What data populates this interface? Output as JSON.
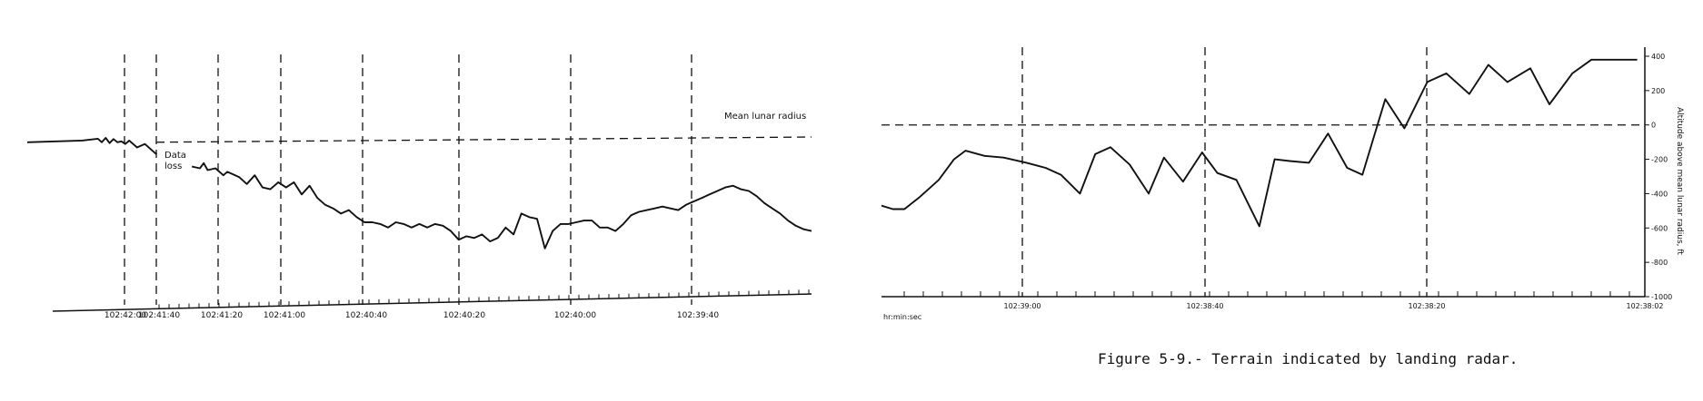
{
  "caption": "Figure 5-9.- Terrain indicated by landing radar.",
  "ink_color": "#111111",
  "chart_data": [
    {
      "type": "line",
      "panel": "left",
      "title": "",
      "xlabel": "",
      "ylabel": "",
      "x_ticks": [
        "102:42:00",
        "102:41:40",
        "102:41:20",
        "102:41:00",
        "102:40:40",
        "102:40:20",
        "102:40:00",
        "102:39:40"
      ],
      "xlim": [
        0,
        100
      ],
      "ylim": [
        -10,
        100
      ],
      "reference_line": {
        "label": "Mean lunar radius",
        "y_start": 85,
        "y_end": 88
      },
      "annotations": [
        "Data",
        "loss"
      ],
      "series": [
        {
          "segment": "before-data-loss",
          "x": [
            0,
            7,
            9,
            9.5,
            10,
            10.5,
            11,
            11.5,
            12,
            12.5,
            13,
            14,
            15,
            16,
            16.5
          ],
          "y": [
            85,
            86,
            87,
            85,
            87.5,
            84.5,
            86.8,
            85,
            85.5,
            84,
            86,
            82,
            84,
            80,
            78
          ]
        },
        {
          "segment": "after-data-loss",
          "x": [
            21,
            22,
            22.5,
            23,
            24,
            25,
            25.5,
            26,
            27,
            28,
            29,
            30,
            31,
            32,
            33,
            34,
            35,
            36,
            37,
            38,
            39,
            40,
            41,
            42,
            43,
            44,
            45,
            46,
            47,
            48,
            49,
            50,
            51,
            52,
            53,
            54,
            55,
            56,
            57,
            58,
            59,
            60,
            61,
            62,
            63,
            64,
            65,
            66,
            67,
            68,
            69,
            70,
            71,
            72,
            73,
            74,
            75,
            76,
            77,
            78,
            79,
            80,
            81,
            82,
            83,
            84,
            85,
            86,
            87,
            88,
            89,
            90,
            91,
            92,
            93,
            94,
            95,
            96,
            97,
            98,
            99,
            100
          ],
          "y": [
            71,
            70,
            73,
            69,
            70,
            66,
            68,
            67,
            65,
            61,
            66,
            59,
            58,
            62,
            59,
            62,
            55,
            60,
            53,
            49,
            47,
            44,
            46,
            42,
            39,
            39,
            38,
            36,
            39,
            38,
            36,
            38,
            36,
            38,
            37,
            34,
            29,
            31,
            30,
            32,
            28,
            30,
            36,
            32,
            44,
            42,
            41,
            24,
            34,
            38,
            38,
            39,
            40,
            40,
            36,
            36,
            34,
            38,
            43,
            45,
            46,
            47,
            48,
            47,
            46,
            49,
            51,
            53,
            55,
            57,
            59,
            60,
            58,
            57,
            54,
            50,
            47,
            44,
            40,
            37,
            35,
            34
          ]
        }
      ]
    },
    {
      "type": "line",
      "panel": "right",
      "title": "",
      "xlabel": "hr:min:sec",
      "ylabel": "Altitude above mean lunar radius, ft",
      "x_ticks": [
        "102:39:00",
        "102:38:40",
        "102:38:20",
        "102:38:02"
      ],
      "y_ticks": [
        400,
        200,
        0,
        -200,
        -400,
        -600,
        -800,
        -1000
      ],
      "xlim": [
        0,
        100
      ],
      "ylim": [
        -1000,
        400
      ],
      "reference_line": {
        "label": "",
        "y": 0
      },
      "series": [
        {
          "name": "",
          "x": [
            0,
            1.5,
            3,
            5,
            7.5,
            9.5,
            11,
            13.5,
            16,
            19,
            21.5,
            23.5,
            26,
            28,
            30,
            32.5,
            35,
            37,
            39.5,
            42,
            44,
            46.5,
            49.5,
            51.5,
            53.5,
            56,
            58.5,
            61,
            63,
            66,
            68.5,
            71.5,
            74,
            77,
            79.5,
            82,
            85,
            87.5,
            90.5,
            93,
            96,
            99
          ],
          "y": [
            -470,
            -490,
            -490,
            -420,
            -320,
            -200,
            -150,
            -180,
            -190,
            -220,
            -250,
            -290,
            -400,
            -170,
            -130,
            -230,
            -400,
            -190,
            -330,
            -160,
            -280,
            -320,
            -590,
            -200,
            -210,
            -220,
            -50,
            -250,
            -290,
            150,
            -20,
            250,
            300,
            180,
            350,
            250,
            330,
            120,
            300,
            380,
            380,
            380
          ]
        }
      ]
    }
  ]
}
